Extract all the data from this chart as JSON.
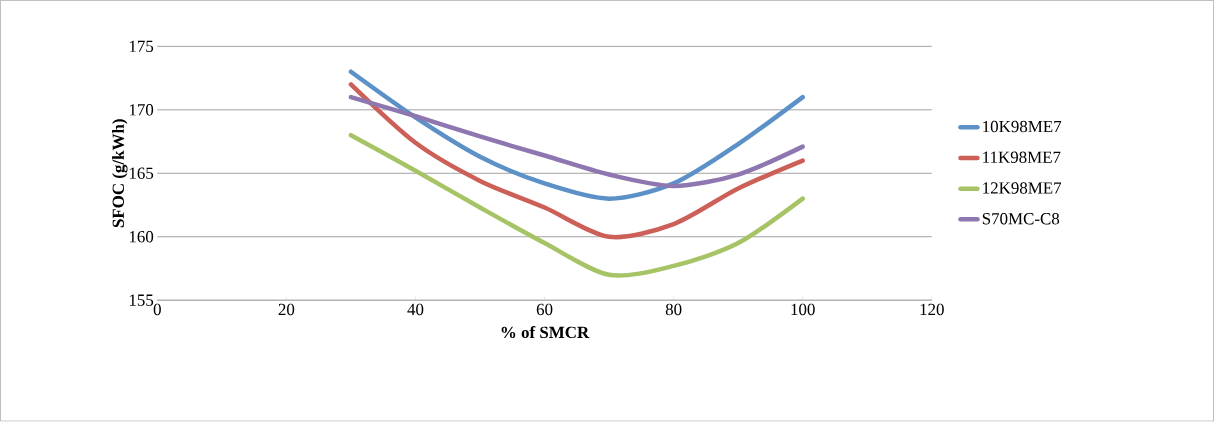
{
  "chart_data": {
    "type": "line",
    "xlabel": "% of SMCR",
    "ylabel": "SFOC (g/kWh)",
    "xlim": [
      0,
      120
    ],
    "xticks": [
      0,
      20,
      40,
      60,
      80,
      100,
      120
    ],
    "ylim": [
      155,
      175
    ],
    "yticks": [
      155,
      160,
      165,
      170,
      175
    ],
    "grid": "y",
    "legend": "right",
    "marker": "none",
    "line_style": "solid",
    "x": [
      30,
      40,
      50,
      60,
      70,
      80,
      90,
      100
    ],
    "series": [
      {
        "name": "10K98ME7",
        "color": "#5b91c7",
        "values": [
          173,
          169.4,
          166.3,
          164.2,
          163,
          164.2,
          167.3,
          171
        ]
      },
      {
        "name": "11K98ME7",
        "color": "#cc5f57",
        "values": [
          172,
          167.4,
          164.4,
          162.3,
          160,
          161,
          163.8,
          166
        ]
      },
      {
        "name": "12K98ME7",
        "color": "#a6c466",
        "values": [
          168,
          165.2,
          162.3,
          159.5,
          157,
          157.7,
          159.5,
          163
        ]
      },
      {
        "name": "S70MC-C8",
        "color": "#8e77b0",
        "values": [
          171,
          169.5,
          167.9,
          166.4,
          164.9,
          164,
          164.9,
          167.1
        ]
      }
    ]
  }
}
